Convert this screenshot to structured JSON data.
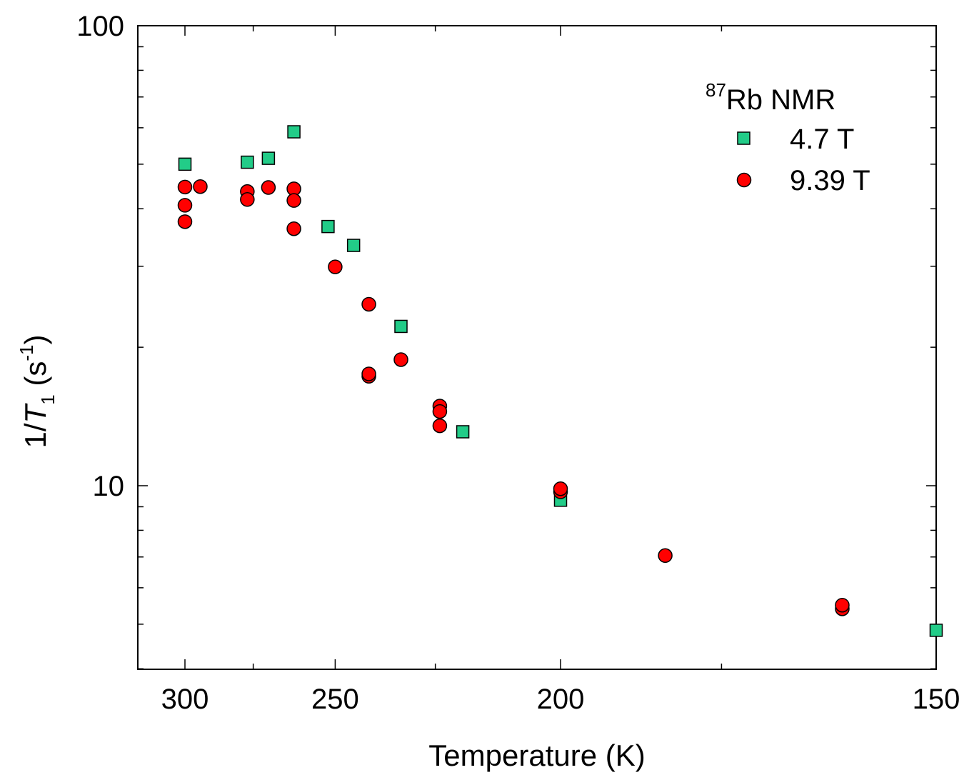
{
  "chart_data": {
    "type": "scatter",
    "title": "",
    "xlabel": "Temperature (K)",
    "ylabel": {
      "prefix": "1/",
      "symbol": "T",
      "subscript": "1",
      "unit_open": " (s",
      "unit_sup": "-1",
      "unit_close": ")"
    },
    "x_axis": {
      "scale": "reciprocal",
      "range": [
        311,
        150
      ],
      "ticks": [
        "300",
        "250",
        "200",
        "150"
      ]
    },
    "y_axis": {
      "scale": "log",
      "range": [
        3.9,
        100
      ],
      "ticks": [
        "10",
        "100"
      ]
    },
    "grid": false,
    "legend": {
      "placement": "top-right",
      "title_sup": "87",
      "title_main": "Rb NMR"
    },
    "series": [
      {
        "name": "4.7 T",
        "marker": "square",
        "color": "#22cc88",
        "points": [
          [
            300,
            50.0
          ],
          [
            277,
            50.5
          ],
          [
            270,
            51.5
          ],
          [
            262,
            58.8
          ],
          [
            252,
            36.6
          ],
          [
            245,
            33.3
          ],
          [
            233,
            22.2
          ],
          [
            219,
            13.1
          ],
          [
            200,
            9.3
          ],
          [
            150,
            4.85
          ]
        ]
      },
      {
        "name": "9.39 T",
        "marker": "circle",
        "color": "#ff0000",
        "points": [
          [
            300,
            44.6
          ],
          [
            300,
            40.7
          ],
          [
            300,
            37.5
          ],
          [
            294,
            44.7
          ],
          [
            277,
            43.6
          ],
          [
            277,
            41.9
          ],
          [
            270,
            44.5
          ],
          [
            262,
            44.2
          ],
          [
            262,
            41.7
          ],
          [
            262,
            36.2
          ],
          [
            250,
            29.9
          ],
          [
            241,
            24.8
          ],
          [
            241,
            17.3
          ],
          [
            241,
            17.5
          ],
          [
            233,
            18.8
          ],
          [
            224,
            14.9
          ],
          [
            224,
            14.5
          ],
          [
            224,
            13.5
          ],
          [
            200,
            9.7
          ],
          [
            200,
            9.85
          ],
          [
            183,
            7.05
          ],
          [
            160,
            5.4
          ],
          [
            160,
            5.5
          ]
        ]
      }
    ]
  }
}
